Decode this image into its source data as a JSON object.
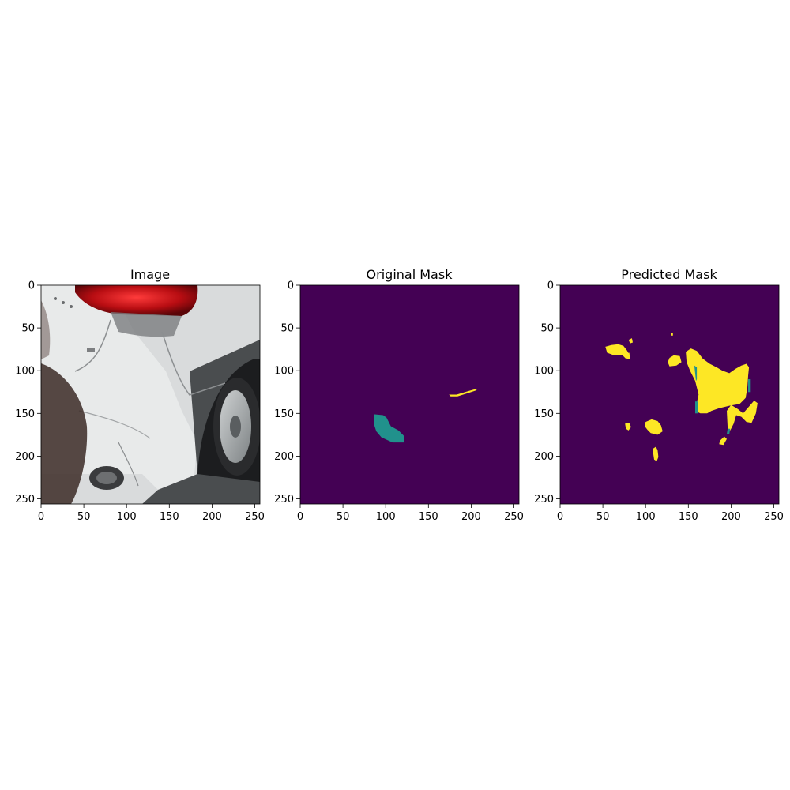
{
  "figure": {
    "background": "#ffffff"
  },
  "chart_data": [
    {
      "type": "image",
      "title": "Image",
      "content": "photo",
      "xlim": [
        0,
        256
      ],
      "ylim": [
        256,
        0
      ],
      "xticks": [
        0,
        50,
        100,
        150,
        200,
        250
      ],
      "yticks": [
        0,
        50,
        100,
        150,
        200,
        250
      ]
    },
    {
      "type": "heatmap",
      "title": "Original Mask",
      "xlim": [
        0,
        256
      ],
      "ylim": [
        256,
        0
      ],
      "xticks": [
        0,
        50,
        100,
        150,
        200,
        250
      ],
      "yticks": [
        0,
        50,
        100,
        150,
        200,
        250
      ],
      "colormap": "viridis",
      "colors": {
        "background": "#440154",
        "class_1": "#21918c",
        "class_2": "#fde725"
      },
      "regions": [
        {
          "class": "class_1",
          "points": [
            [
              86,
              151
            ],
            [
              97,
              152
            ],
            [
              101,
              155
            ],
            [
              106,
              165
            ],
            [
              115,
              170
            ],
            [
              121,
              176
            ],
            [
              122,
              184
            ],
            [
              108,
              184
            ],
            [
              95,
              178
            ],
            [
              89,
              171
            ],
            [
              86,
              162
            ]
          ]
        },
        {
          "class": "class_2",
          "points": [
            [
              174,
              128
            ],
            [
              183,
              128
            ],
            [
              196,
              124
            ],
            [
              207,
              121
            ],
            [
              206,
              123
            ],
            [
              194,
              127
            ],
            [
              184,
              130
            ],
            [
              176,
              130
            ]
          ]
        }
      ]
    },
    {
      "type": "heatmap",
      "title": "Predicted Mask",
      "xlim": [
        0,
        256
      ],
      "ylim": [
        256,
        0
      ],
      "xticks": [
        0,
        50,
        100,
        150,
        200,
        250
      ],
      "yticks": [
        0,
        50,
        100,
        150,
        200,
        250
      ],
      "colormap": "viridis",
      "colors": {
        "background": "#440154",
        "class_1": "#21918c",
        "class_2": "#fde725"
      },
      "regions": [
        {
          "class": "class_2",
          "points": [
            [
              147,
              78
            ],
            [
              153,
              74
            ],
            [
              160,
              77
            ],
            [
              167,
              86
            ],
            [
              175,
              92
            ],
            [
              183,
              96
            ],
            [
              190,
              100
            ],
            [
              198,
              103
            ],
            [
              205,
              98
            ],
            [
              212,
              94
            ],
            [
              218,
              92
            ],
            [
              221,
              96
            ],
            [
              220,
              106
            ],
            [
              219,
              120
            ],
            [
              217,
              132
            ],
            [
              210,
              139
            ],
            [
              198,
              141
            ],
            [
              186,
              144
            ],
            [
              177,
              147
            ],
            [
              172,
              150
            ],
            [
              164,
              150
            ],
            [
              160,
              148
            ],
            [
              159,
              142
            ],
            [
              162,
              128
            ],
            [
              158,
              112
            ],
            [
              152,
              100
            ],
            [
              148,
              90
            ]
          ]
        },
        {
          "class": "class_2",
          "points": [
            [
              195,
              147
            ],
            [
              200,
              140
            ],
            [
              208,
              145
            ],
            [
              214,
              150
            ],
            [
              221,
              142
            ],
            [
              227,
              135
            ],
            [
              231,
              138
            ],
            [
              229,
              150
            ],
            [
              224,
              161
            ],
            [
              218,
              160
            ],
            [
              212,
              154
            ],
            [
              206,
              152
            ],
            [
              203,
              162
            ],
            [
              199,
              170
            ],
            [
              196,
              167
            ]
          ]
        },
        {
          "class": "class_2",
          "points": [
            [
              187,
              182
            ],
            [
              192,
              177
            ],
            [
              195,
              180
            ],
            [
              191,
              187
            ],
            [
              186,
              186
            ]
          ]
        },
        {
          "class": "class_2",
          "points": [
            [
              53,
              72
            ],
            [
              60,
              70
            ],
            [
              68,
              69
            ],
            [
              74,
              71
            ],
            [
              78,
              76
            ],
            [
              82,
              83
            ],
            [
              77,
              86
            ],
            [
              73,
              82
            ],
            [
              63,
              82
            ],
            [
              55,
              79
            ]
          ]
        },
        {
          "class": "class_2",
          "points": [
            [
              77,
              80
            ],
            [
              81,
              79
            ],
            [
              82,
              87
            ],
            [
              78,
              86
            ]
          ]
        },
        {
          "class": "class_2",
          "points": [
            [
              80,
              64
            ],
            [
              84,
              62
            ],
            [
              85,
              67
            ],
            [
              82,
              68
            ]
          ]
        },
        {
          "class": "class_2",
          "points": [
            [
              128,
              85
            ],
            [
              133,
              82
            ],
            [
              140,
              83
            ],
            [
              142,
              90
            ],
            [
              136,
              94
            ],
            [
              128,
              95
            ],
            [
              126,
              90
            ]
          ]
        },
        {
          "class": "class_2",
          "points": [
            [
              130,
              56
            ],
            [
              132,
              56
            ],
            [
              132,
              59
            ],
            [
              130,
              59
            ]
          ]
        },
        {
          "class": "class_2",
          "points": [
            [
              100,
              160
            ],
            [
              107,
              157
            ],
            [
              114,
              159
            ],
            [
              118,
              164
            ],
            [
              120,
              171
            ],
            [
              114,
              175
            ],
            [
              106,
              173
            ],
            [
              102,
              169
            ],
            [
              99,
              165
            ]
          ]
        },
        {
          "class": "class_2",
          "points": [
            [
              76,
              162
            ],
            [
              81,
              161
            ],
            [
              83,
              166
            ],
            [
              80,
              170
            ],
            [
              77,
              168
            ]
          ]
        },
        {
          "class": "class_2",
          "points": [
            [
              109,
              191
            ],
            [
              112,
              189
            ],
            [
              114,
              193
            ],
            [
              115,
              201
            ],
            [
              113,
              206
            ],
            [
              110,
              204
            ],
            [
              109,
              197
            ]
          ]
        },
        {
          "class": "class_1",
          "points": [
            [
              157,
              94
            ],
            [
              160,
              96
            ],
            [
              160,
              110
            ],
            [
              159,
              112
            ]
          ]
        },
        {
          "class": "class_1",
          "points": [
            [
              158,
              136
            ],
            [
              161,
              136
            ],
            [
              161,
              150
            ],
            [
              158,
              150
            ]
          ]
        },
        {
          "class": "class_1",
          "points": [
            [
              220,
              110
            ],
            [
              223,
              110
            ],
            [
              223,
              125
            ],
            [
              220,
              125
            ]
          ]
        },
        {
          "class": "class_1",
          "points": [
            [
              196,
              168
            ],
            [
              199,
              168
            ],
            [
              198,
              174
            ],
            [
              195,
              174
            ]
          ]
        }
      ]
    }
  ]
}
